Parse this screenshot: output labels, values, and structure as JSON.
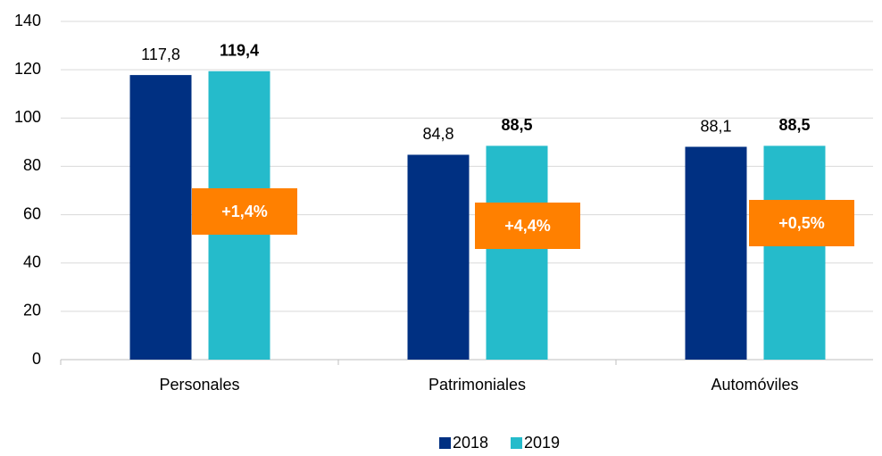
{
  "chart_data": {
    "type": "bar",
    "categories": [
      "Personales",
      "Patrimoniales",
      "Automóviles"
    ],
    "series": [
      {
        "name": "2018",
        "color": "#003082",
        "values": [
          117.8,
          84.8,
          88.1
        ],
        "value_labels": [
          "117,8",
          "84,8",
          "88,1"
        ]
      },
      {
        "name": "2019",
        "color": "#25bbcb",
        "values": [
          119.4,
          88.5,
          88.5
        ],
        "value_labels": [
          "119,4",
          "88,5",
          "88,5"
        ]
      }
    ],
    "annotations": [
      "+1,4%",
      "+4,4%",
      "+0,5%"
    ],
    "annotation_color": "#ff8000",
    "ylim": [
      0,
      140
    ],
    "yticks": [
      0,
      20,
      40,
      60,
      80,
      100,
      120,
      140
    ],
    "grid": true,
    "legend": "bottom"
  }
}
